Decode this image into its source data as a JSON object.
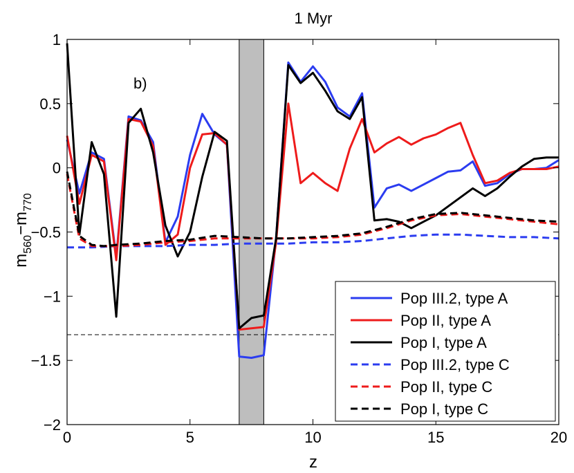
{
  "chart_data": {
    "type": "line",
    "title": "1 Myr",
    "xlabel": "z",
    "ylabel": {
      "main": "m",
      "sub1": "560",
      "dash": "−m",
      "sub2": "770"
    },
    "xlim": [
      0,
      20
    ],
    "ylim": [
      -2,
      1
    ],
    "xticks": [
      0,
      5,
      10,
      15,
      20
    ],
    "yticks": [
      -2,
      -1.5,
      -1,
      -0.5,
      0,
      0.5,
      1
    ],
    "xtick_labels": [
      "0",
      "5",
      "10",
      "15",
      "20"
    ],
    "ytick_labels": [
      "−2",
      "−1.5",
      "−1",
      "−0.5",
      "0",
      "0.5",
      "1"
    ],
    "annotation": {
      "text": "b)",
      "x": 3.3,
      "y": 0.63
    },
    "shaded_band": {
      "x0": 7,
      "x1": 8,
      "color": "#bebebe"
    },
    "hline": {
      "y": -1.3,
      "style": "dashed",
      "color": "#000000"
    },
    "legend_position": "lower-right",
    "series": [
      {
        "name": "Pop III.2, type A",
        "color": "#2b3cf0",
        "dash": "solid",
        "x": [
          0,
          0.5,
          1,
          1.5,
          2,
          2.5,
          3,
          3.5,
          4,
          4.5,
          5,
          5.5,
          6,
          6.5,
          7,
          7.5,
          8,
          8.5,
          9,
          9.5,
          10,
          10.5,
          11,
          11.5,
          12,
          12.5,
          13,
          13.5,
          14,
          14.5,
          15,
          15.5,
          16,
          16.5,
          17,
          17.5,
          18,
          18.5,
          19,
          19.5,
          20
        ],
        "y": [
          0.22,
          -0.2,
          0.12,
          0.07,
          -0.7,
          0.4,
          0.37,
          0.2,
          -0.58,
          -0.38,
          0.1,
          0.42,
          0.26,
          0.18,
          -1.47,
          -1.48,
          -1.46,
          -0.55,
          0.82,
          0.67,
          0.79,
          0.67,
          0.47,
          0.4,
          0.58,
          -0.31,
          -0.16,
          -0.13,
          -0.18,
          -0.13,
          -0.08,
          -0.03,
          -0.02,
          0.05,
          -0.14,
          -0.12,
          -0.05,
          -0.01,
          -0.01,
          0.0,
          0.06
        ]
      },
      {
        "name": "Pop II, type A",
        "color": "#ee1b1b",
        "dash": "solid",
        "x": [
          0,
          0.5,
          1,
          1.5,
          2,
          2.5,
          3,
          3.5,
          4,
          4.5,
          5,
          5.5,
          6,
          6.5,
          7,
          7.5,
          8,
          8.5,
          9,
          9.5,
          10,
          10.5,
          11,
          11.5,
          12,
          12.5,
          13,
          13.5,
          14,
          14.5,
          15,
          15.5,
          16,
          16.5,
          17,
          17.5,
          18,
          18.5,
          19,
          19.5,
          20
        ],
        "y": [
          0.25,
          -0.28,
          0.1,
          0.05,
          -0.72,
          0.38,
          0.36,
          0.17,
          -0.6,
          -0.52,
          0.0,
          0.26,
          0.27,
          0.18,
          -1.26,
          -1.25,
          -1.24,
          -0.58,
          0.5,
          -0.12,
          -0.04,
          -0.12,
          -0.18,
          0.15,
          0.38,
          0.12,
          0.19,
          0.24,
          0.18,
          0.23,
          0.26,
          0.31,
          0.35,
          0.1,
          -0.12,
          -0.1,
          -0.04,
          -0.01,
          -0.01,
          -0.01,
          0.01
        ]
      },
      {
        "name": "Pop I, type A",
        "color": "#000000",
        "dash": "solid",
        "x": [
          0,
          0.5,
          1,
          1.5,
          2,
          2.5,
          3,
          3.5,
          4,
          4.5,
          5,
          5.5,
          6,
          6.5,
          7,
          7.5,
          8,
          8.5,
          9,
          9.5,
          10,
          10.5,
          11,
          11.5,
          12,
          12.5,
          13,
          13.5,
          14,
          14.5,
          15,
          15.5,
          16,
          16.5,
          17,
          17.5,
          18,
          18.5,
          19,
          19.5,
          20
        ],
        "y": [
          0.97,
          -0.52,
          0.2,
          -0.05,
          -1.16,
          0.35,
          0.46,
          0.12,
          -0.45,
          -0.69,
          -0.5,
          -0.07,
          0.28,
          0.21,
          -1.25,
          -1.17,
          -1.15,
          -0.55,
          0.8,
          0.66,
          0.74,
          0.6,
          0.44,
          0.38,
          0.55,
          -0.41,
          -0.4,
          -0.42,
          -0.47,
          -0.42,
          -0.37,
          -0.3,
          -0.23,
          -0.16,
          -0.22,
          -0.16,
          -0.07,
          0.01,
          0.07,
          0.08,
          0.08
        ]
      },
      {
        "name": "Pop III.2, type C",
        "color": "#2b3cf0",
        "dash": "dashed",
        "x": [
          0,
          1,
          2,
          3,
          4,
          5,
          6,
          7,
          8,
          9,
          10,
          11,
          12,
          13,
          14,
          15,
          16,
          17,
          18,
          19,
          20
        ],
        "y": [
          -0.62,
          -0.62,
          -0.61,
          -0.61,
          -0.61,
          -0.6,
          -0.6,
          -0.59,
          -0.59,
          -0.59,
          -0.58,
          -0.58,
          -0.57,
          -0.55,
          -0.53,
          -0.52,
          -0.52,
          -0.53,
          -0.54,
          -0.54,
          -0.55
        ]
      },
      {
        "name": "Pop II, type C",
        "color": "#ee1b1b",
        "dash": "dashed",
        "x": [
          0,
          0.5,
          1,
          1.5,
          2,
          3,
          4,
          5,
          6,
          7,
          8,
          9,
          10,
          11,
          12,
          13,
          14,
          15,
          16,
          17,
          18,
          19,
          20
        ],
        "y": [
          -0.05,
          -0.55,
          -0.61,
          -0.61,
          -0.61,
          -0.6,
          -0.58,
          -0.57,
          -0.55,
          -0.55,
          -0.55,
          -0.55,
          -0.55,
          -0.54,
          -0.52,
          -0.47,
          -0.41,
          -0.37,
          -0.36,
          -0.38,
          -0.4,
          -0.42,
          -0.44
        ]
      },
      {
        "name": "Pop I, type C",
        "color": "#000000",
        "dash": "dashed",
        "x": [
          0,
          0.5,
          1,
          1.5,
          2,
          3,
          4,
          5,
          6,
          7,
          8,
          9,
          10,
          11,
          12,
          13,
          14,
          15,
          16,
          17,
          18,
          19,
          20
        ],
        "y": [
          -0.03,
          -0.53,
          -0.6,
          -0.61,
          -0.6,
          -0.59,
          -0.57,
          -0.56,
          -0.53,
          -0.54,
          -0.55,
          -0.55,
          -0.54,
          -0.53,
          -0.51,
          -0.46,
          -0.4,
          -0.36,
          -0.35,
          -0.37,
          -0.39,
          -0.41,
          -0.42
        ]
      }
    ]
  }
}
